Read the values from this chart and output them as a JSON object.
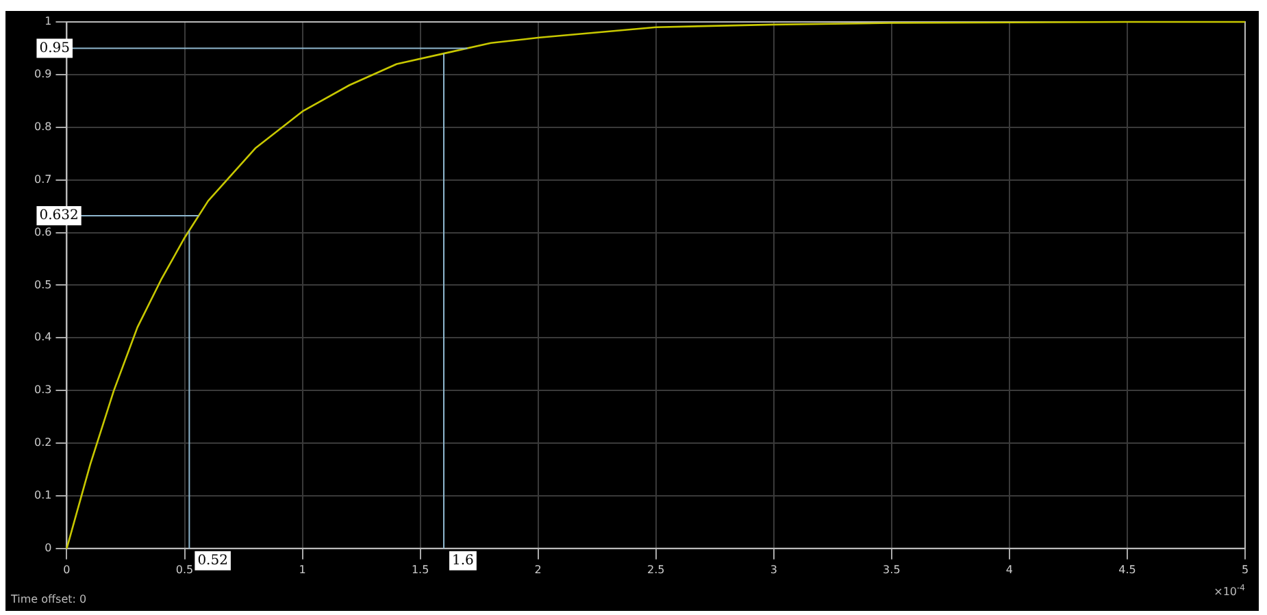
{
  "chart_data": {
    "type": "line",
    "x": [
      0,
      0.1,
      0.2,
      0.3,
      0.4,
      0.5,
      0.6,
      0.8,
      1.0,
      1.2,
      1.4,
      1.6,
      1.8,
      2.0,
      2.5,
      3.0,
      3.5,
      4.0,
      4.5,
      5.0
    ],
    "series": [
      {
        "color": "#c8c800",
        "values": [
          0,
          0.16,
          0.3,
          0.42,
          0.51,
          0.59,
          0.66,
          0.76,
          0.83,
          0.88,
          0.92,
          0.94,
          0.96,
          0.97,
          0.99,
          0.995,
          0.998,
          0.999,
          1,
          1
        ]
      }
    ],
    "xlim": [
      0,
      5
    ],
    "xticks": [
      0,
      0.5,
      1,
      1.5,
      2,
      2.5,
      3,
      3.5,
      4,
      4.5,
      5
    ],
    "ylim": [
      0,
      1
    ],
    "yticks": [
      0,
      0.1,
      0.2,
      0.3,
      0.4,
      0.5,
      0.6,
      0.7,
      0.8,
      0.9,
      1
    ],
    "ref_lines": [
      {
        "axis": "x",
        "value": 0.52,
        "label": "0.52",
        "color": "#8fb8d0"
      },
      {
        "axis": "x",
        "value": 1.6,
        "label": "1.6",
        "color": "#8fb8d0"
      },
      {
        "axis": "y",
        "value": 0.632,
        "label": "0.632",
        "color": "#8fb8d0"
      },
      {
        "axis": "y",
        "value": 0.95,
        "label": "0.95",
        "color": "#8fb8d0"
      }
    ],
    "annotations": [
      "×10$^{-4}$",
      "Time offset:  0"
    ],
    "grid": true,
    "legend": false,
    "marker": "none",
    "line_style": "solid"
  }
}
